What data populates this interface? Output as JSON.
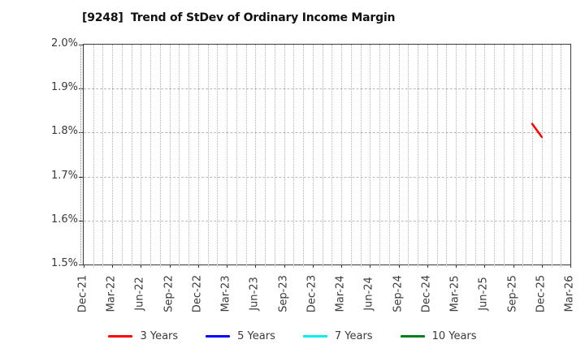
{
  "title": "[9248]  Trend of StDev of Ordinary Income Margin",
  "colors": {
    "background": "#ffffff",
    "title_text": "#111111",
    "axis_spine": "#3a3a3a",
    "tick_text": "#3a3a3a",
    "grid": "#b3b3b3"
  },
  "chart_data": {
    "type": "line",
    "title": "[9248]  Trend of StDev of Ordinary Income Margin",
    "xlabel": "",
    "ylabel": "",
    "y_axis": {
      "min": 1.5,
      "max": 2.0,
      "tick_step": 0.1,
      "tick_labels": [
        "2.0%",
        "1.9%",
        "1.8%",
        "1.7%",
        "1.6%",
        "1.5%"
      ],
      "unit": "%"
    },
    "x_axis": {
      "start": "Dec-21",
      "end": "Mar-26",
      "months_total": 51,
      "tick_every_months": 3,
      "tick_labels": [
        "Dec-21",
        "Mar-22",
        "Jun-22",
        "Sep-22",
        "Dec-22",
        "Mar-23",
        "Jun-23",
        "Sep-23",
        "Dec-23",
        "Mar-24",
        "Jun-24",
        "Sep-24",
        "Dec-24",
        "Mar-25",
        "Jun-25",
        "Sep-25",
        "Dec-25",
        "Mar-26"
      ]
    },
    "grid": {
      "vertical": "monthly dotted",
      "horizontal": "0.1% dashed",
      "visible": true
    },
    "legend_position": "bottom-center",
    "series": [
      {
        "name": "3 Years",
        "color": "#ff0000",
        "points": [
          {
            "x": "Nov-25",
            "month_index": 47,
            "value": 1.82
          },
          {
            "x": "Dec-25",
            "month_index": 48,
            "value": 1.79
          }
        ]
      },
      {
        "name": "5 Years",
        "color": "#0000ff",
        "points": []
      },
      {
        "name": "7 Years",
        "color": "#00eeee",
        "points": []
      },
      {
        "name": "10 Years",
        "color": "#007d1c",
        "points": []
      }
    ]
  }
}
